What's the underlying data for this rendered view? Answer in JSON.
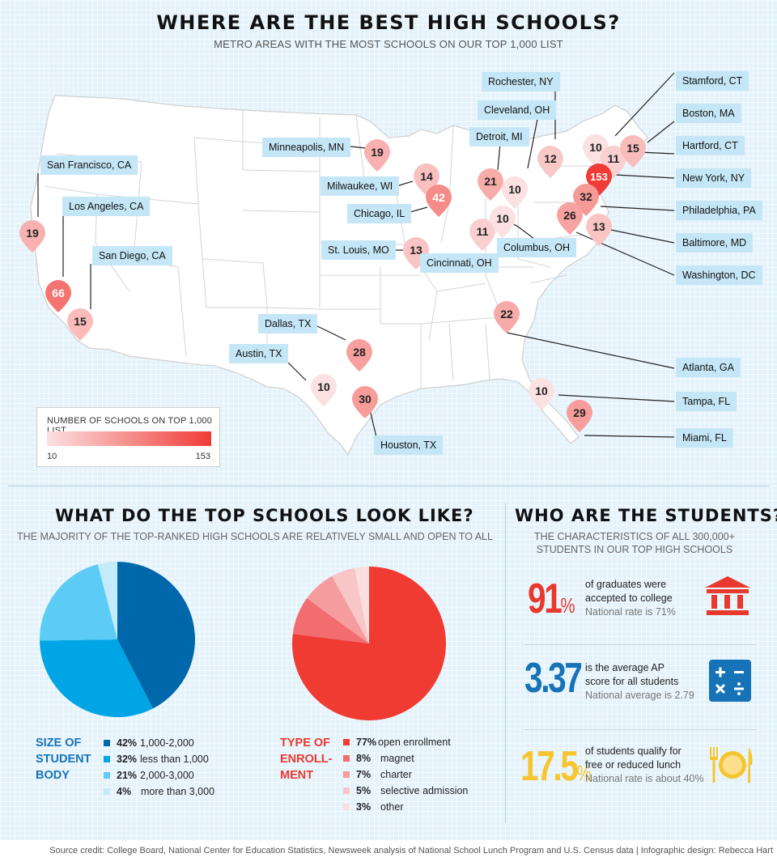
{
  "header": {
    "title": "WHERE ARE THE BEST HIGH SCHOOLS?",
    "subtitle": "METRO AREAS WITH THE MOST SCHOOLS ON OUR TOP 1,000 LIST"
  },
  "map": {
    "pins": [
      {
        "city": "San Francisco, CA",
        "value": 19
      },
      {
        "city": "Los Angeles, CA",
        "value": 66
      },
      {
        "city": "San Diego, CA",
        "value": 15
      },
      {
        "city": "Minneapolis, MN",
        "value": 19
      },
      {
        "city": "Milwaukee, WI",
        "value": 14
      },
      {
        "city": "Chicago, IL",
        "value": 42
      },
      {
        "city": "St. Louis, MO",
        "value": 13
      },
      {
        "city": "Cincinnati, OH",
        "value": 11
      },
      {
        "city": "Columbus, OH",
        "value": 10
      },
      {
        "city": "Detroit, MI",
        "value": 21
      },
      {
        "city": "Cleveland, OH",
        "value": 10
      },
      {
        "city": "Rochester, NY",
        "value": 12
      },
      {
        "city": "Stamford, CT",
        "value": 10
      },
      {
        "city": "Boston, MA",
        "value": 11
      },
      {
        "city": "Hartford, CT",
        "value": 15
      },
      {
        "city": "New York, NY",
        "value": 153
      },
      {
        "city": "Philadelphia, PA",
        "value": 32
      },
      {
        "city": "Baltimore, MD",
        "value": 13
      },
      {
        "city": "Washington, DC",
        "value": 26
      },
      {
        "city": "Dallas, TX",
        "value": 28
      },
      {
        "city": "Austin, TX",
        "value": 10
      },
      {
        "city": "Houston, TX",
        "value": 30
      },
      {
        "city": "Atlanta, GA",
        "value": 22
      },
      {
        "city": "Tampa, FL",
        "value": 10
      },
      {
        "city": "Miami, FL",
        "value": 29
      }
    ],
    "legend": {
      "title": "NUMBER OF SCHOOLS ON TOP 1,000 LIST",
      "min": "10",
      "max": "153",
      "color_min": "#fbe1e1",
      "color_max": "#f03b36"
    }
  },
  "schools": {
    "title": "WHAT DO THE TOP SCHOOLS LOOK LIKE?",
    "subtitle": "THE MAJORITY OF THE TOP-RANKED HIGH SCHOOLS ARE RELATIVELY SMALL AND OPEN TO ALL"
  },
  "chart_data": [
    {
      "type": "pie",
      "title": "SIZE OF STUDENT BODY",
      "slices": [
        {
          "label": "1,000-2,000",
          "value": 42,
          "display": "42%",
          "color": "#0067ab"
        },
        {
          "label": "less than 1,000",
          "value": 32,
          "display": "32%",
          "color": "#00a5e6"
        },
        {
          "label": "2,000-3,000",
          "value": 21,
          "display": "21%",
          "color": "#5ccbf5"
        },
        {
          "label": "more than 3,000",
          "value": 4,
          "display": "4%",
          "color": "#c4ebfb"
        }
      ]
    },
    {
      "type": "pie",
      "title": "TYPE OF ENROLL-MENT",
      "slices": [
        {
          "label": "open enrollment",
          "value": 77,
          "display": "77%",
          "color": "#ef3b32"
        },
        {
          "label": "magnet",
          "value": 8,
          "display": "8%",
          "color": "#f26d70"
        },
        {
          "label": "charter",
          "value": 7,
          "display": "7%",
          "color": "#f59d9e"
        },
        {
          "label": "selective admission",
          "value": 5,
          "display": "5%",
          "color": "#f9c6c7"
        },
        {
          "label": "other",
          "value": 3,
          "display": "3%",
          "color": "#fbdfdf"
        }
      ]
    }
  ],
  "students": {
    "title": "WHO ARE THE STUDENTS?",
    "subtitle_line1": "THE CHARACTERISTICS OF ALL 300,000+",
    "subtitle_line2": "STUDENTS IN OUR TOP HIGH SCHOOLS",
    "stats": [
      {
        "value": "91",
        "unit": "%",
        "line1": "of graduates were",
        "line2": "accepted to college",
        "note": "National rate is 71%",
        "color": "#e8392f",
        "icon": "bank-building-icon"
      },
      {
        "value": "3.37",
        "unit": "",
        "line1": "is the average AP",
        "line2": "score for all students",
        "note": "National average is 2.79",
        "color": "#1673b8",
        "icon": "calculator-icon"
      },
      {
        "value": "17.5",
        "unit": "%",
        "line1": "of students qualify for",
        "line2": "free or reduced lunch",
        "note": "National rate is about 40%",
        "color": "#f7c52e",
        "icon": "plate-cutlery-icon"
      }
    ]
  },
  "footer": {
    "credit": "Source credit: College Board, National Center for Education Statistics, Newsweek analysis of National School Lunch Program and U.S. Census data  |  Infographic design: Rebecca Hart"
  }
}
